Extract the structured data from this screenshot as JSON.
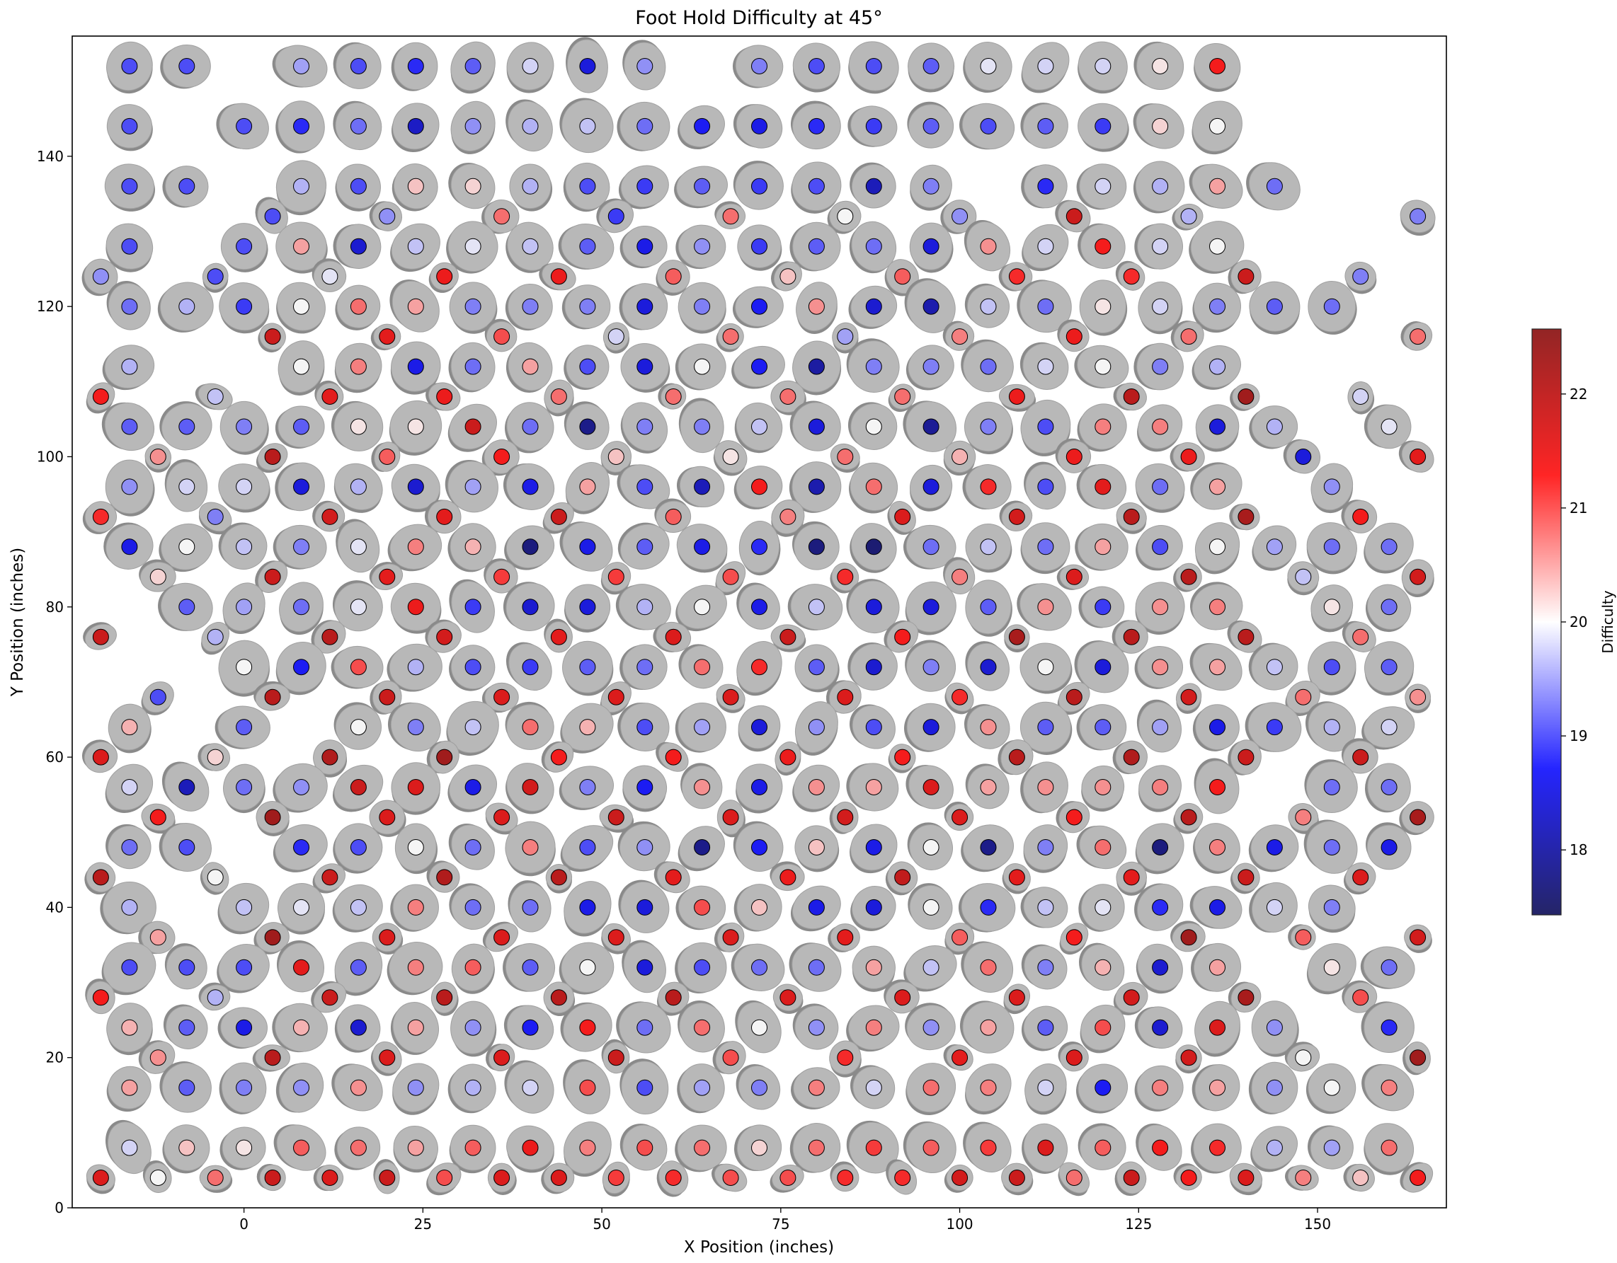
{
  "chart_data": {
    "type": "scatter",
    "title": "Foot Hold Difficulty at 45°",
    "xlabel": "X Position (inches)",
    "ylabel": "Y Position (inches)",
    "xlim": [
      -24,
      168
    ],
    "ylim": [
      0,
      156
    ],
    "xticks": [
      0,
      25,
      50,
      75,
      100,
      125,
      150
    ],
    "yticks": [
      0,
      20,
      40,
      60,
      80,
      100,
      120,
      140
    ],
    "grid": false,
    "colorbar": {
      "label": "Difficulty",
      "colormap": "seismic",
      "vmin": 17.43,
      "vmax": 22.57,
      "ticks": [
        18,
        19,
        20,
        21,
        22
      ]
    },
    "marker_edge_color": "#000000",
    "hold_color": "#b8b8b8",
    "rows": [
      {
        "y": 152,
        "x_start": -16,
        "x_step": 8,
        "difficulty": [
          19.0,
          19.0,
          null,
          19.5,
          19.0,
          18.8,
          19.1,
          19.8,
          18.5,
          19.4,
          null,
          19.3,
          19.0,
          19.0,
          19.1,
          19.9,
          19.8,
          19.8,
          20.1,
          21.3,
          null,
          null,
          null
        ]
      },
      {
        "y": 144,
        "x_start": -16,
        "x_step": 8,
        "difficulty": [
          19.0,
          null,
          19.0,
          18.8,
          19.2,
          18.3,
          19.4,
          19.6,
          19.7,
          19.2,
          18.7,
          18.6,
          18.8,
          18.9,
          19.1,
          19.0,
          19.1,
          18.9,
          20.2,
          20.0,
          null,
          null,
          null
        ]
      },
      {
        "y": 136,
        "x_start": -16,
        "x_step": 8,
        "difficulty": [
          19.0,
          19.0,
          null,
          19.6,
          19.0,
          20.3,
          20.2,
          19.6,
          19.0,
          18.9,
          19.1,
          18.9,
          19.0,
          18.2,
          19.3,
          null,
          18.8,
          19.8,
          19.6,
          20.5,
          19.2,
          null,
          null
        ]
      },
      {
        "y": 132,
        "x_start": -12,
        "x_step": 16,
        "difficulty": [
          null,
          19.0,
          19.4,
          20.8,
          18.9,
          20.8,
          20.0,
          19.4,
          21.8,
          19.6,
          null,
          19.3
        ]
      },
      {
        "y": 128,
        "x_start": -16,
        "x_step": 8,
        "difficulty": [
          19.0,
          null,
          19.0,
          20.5,
          18.4,
          19.7,
          19.9,
          19.7,
          19.1,
          18.6,
          19.4,
          18.9,
          19.1,
          19.2,
          18.5,
          20.6,
          19.8,
          21.3,
          19.8,
          20.0,
          null,
          null,
          null
        ]
      },
      {
        "y": 124,
        "x_start": -20,
        "x_step": 16,
        "difficulty": [
          19.4,
          19.0,
          19.9,
          21.4,
          21.4,
          20.9,
          20.3,
          20.9,
          21.2,
          21.2,
          21.8,
          19.3
        ]
      },
      {
        "y": 120,
        "x_start": -16,
        "x_step": 8,
        "difficulty": [
          19.2,
          19.6,
          18.9,
          20.0,
          20.8,
          20.5,
          19.3,
          19.3,
          19.3,
          18.5,
          19.3,
          18.7,
          20.6,
          18.4,
          18.1,
          19.7,
          19.2,
          20.1,
          19.8,
          19.3,
          19.1,
          19.2,
          null
        ]
      },
      {
        "y": 116,
        "x_start": -12,
        "x_step": 16,
        "difficulty": [
          null,
          21.8,
          21.5,
          21.0,
          19.8,
          20.8,
          19.5,
          20.7,
          21.4,
          20.8,
          null,
          20.8
        ]
      },
      {
        "y": 112,
        "x_start": -16,
        "x_step": 8,
        "difficulty": [
          19.6,
          null,
          null,
          20.0,
          20.7,
          18.6,
          19.2,
          20.5,
          19.0,
          18.5,
          20.0,
          18.7,
          18.0,
          19.3,
          19.3,
          19.2,
          19.8,
          20.0,
          19.3,
          19.6,
          null,
          null,
          null
        ]
      },
      {
        "y": 108,
        "x_start": -20,
        "x_step": 16,
        "difficulty": [
          21.3,
          19.7,
          21.5,
          21.4,
          20.8,
          20.8,
          20.8,
          20.8,
          21.4,
          22.0,
          22.3,
          19.8
        ]
      },
      {
        "y": 104,
        "x_start": -16,
        "x_step": 8,
        "difficulty": [
          19.1,
          19.1,
          19.3,
          19.1,
          20.1,
          20.1,
          21.8,
          19.2,
          17.8,
          19.3,
          19.3,
          19.7,
          18.5,
          20.0,
          17.9,
          19.3,
          19.0,
          20.7,
          20.7,
          18.5,
          19.6,
          null,
          19.9
        ]
      },
      {
        "y": 100,
        "x_start": -12,
        "x_step": 16,
        "difficulty": [
          20.6,
          22.0,
          20.9,
          21.3,
          20.3,
          20.1,
          20.8,
          20.4,
          21.4,
          21.4,
          18.5,
          21.5
        ]
      },
      {
        "y": 96,
        "x_start": -16,
        "x_step": 8,
        "difficulty": [
          19.4,
          19.8,
          19.8,
          18.5,
          19.6,
          18.4,
          19.5,
          18.6,
          20.5,
          19.0,
          18.2,
          21.3,
          18.1,
          20.8,
          18.5,
          21.2,
          19.0,
          21.5,
          19.2,
          20.5,
          null,
          19.4,
          null
        ]
      },
      {
        "y": 92,
        "x_start": -20,
        "x_step": 16,
        "difficulty": [
          21.2,
          19.3,
          21.7,
          21.5,
          21.8,
          20.9,
          20.7,
          21.6,
          21.7,
          22.0,
          22.2,
          21.3
        ]
      },
      {
        "y": 88,
        "x_start": -16,
        "x_step": 8,
        "difficulty": [
          18.6,
          20.0,
          19.7,
          19.3,
          19.9,
          20.7,
          20.4,
          17.7,
          18.6,
          19.1,
          18.6,
          18.8,
          17.7,
          17.6,
          19.2,
          19.7,
          19.2,
          20.5,
          19.0,
          20.0,
          19.5,
          19.2,
          19.2
        ]
      },
      {
        "y": 84,
        "x_start": -12,
        "x_step": 16,
        "difficulty": [
          20.2,
          21.8,
          21.5,
          21.1,
          21.1,
          21.0,
          21.2,
          20.7,
          21.6,
          22.0,
          19.7,
          21.7
        ]
      },
      {
        "y": 80,
        "x_start": -16,
        "x_step": 8,
        "difficulty": [
          null,
          19.1,
          19.5,
          19.2,
          19.9,
          21.4,
          18.9,
          18.4,
          18.5,
          19.6,
          20.0,
          18.6,
          19.7,
          18.5,
          18.5,
          19.1,
          20.6,
          18.9,
          20.6,
          20.7,
          null,
          20.1,
          19.2
        ]
      },
      {
        "y": 76,
        "x_start": -20,
        "x_step": 16,
        "difficulty": [
          21.8,
          19.6,
          22.0,
          21.7,
          21.5,
          21.6,
          21.8,
          21.3,
          22.2,
          22.0,
          22.0,
          20.8
        ]
      },
      {
        "y": 72,
        "x_start": -16,
        "x_step": 8,
        "difficulty": [
          null,
          null,
          20.0,
          18.7,
          21.0,
          19.6,
          19.0,
          18.9,
          19.1,
          19.2,
          20.8,
          21.2,
          19.1,
          18.4,
          19.3,
          18.4,
          20.0,
          18.5,
          20.6,
          20.5,
          19.7,
          19.0,
          19.1
        ]
      },
      {
        "y": 68,
        "x_start": -12,
        "x_step": 16,
        "difficulty": [
          19.0,
          22.0,
          21.8,
          21.6,
          21.6,
          21.6,
          21.6,
          21.2,
          22.0,
          21.7,
          20.8,
          20.6
        ]
      },
      {
        "y": 64,
        "x_start": -16,
        "x_step": 8,
        "difficulty": [
          20.4,
          null,
          19.1,
          null,
          20.0,
          19.3,
          19.7,
          20.8,
          20.4,
          19.0,
          19.5,
          18.5,
          19.4,
          19.0,
          18.5,
          20.6,
          19.1,
          19.1,
          19.5,
          18.6,
          18.9,
          19.6,
          19.8
        ]
      },
      {
        "y": 60,
        "x_start": -20,
        "x_step": 16,
        "difficulty": [
          21.6,
          20.2,
          22.1,
          22.3,
          21.3,
          21.3,
          21.4,
          21.3,
          22.0,
          22.1,
          21.8,
          21.8
        ]
      },
      {
        "y": 56,
        "x_start": -16,
        "x_step": 8,
        "difficulty": [
          19.8,
          18.2,
          19.2,
          19.4,
          21.8,
          21.6,
          18.6,
          21.7,
          19.3,
          18.7,
          20.6,
          18.6,
          20.6,
          20.5,
          21.6,
          20.5,
          20.6,
          20.6,
          20.7,
          21.3,
          null,
          19.2,
          19.2
        ]
      },
      {
        "y": 52,
        "x_start": -12,
        "x_step": 16,
        "difficulty": [
          21.3,
          22.3,
          21.6,
          21.6,
          21.8,
          21.6,
          21.7,
          21.6,
          21.3,
          22.0,
          20.7,
          22.2
        ]
      },
      {
        "y": 48,
        "x_start": -16,
        "x_step": 8,
        "difficulty": [
          19.2,
          19.0,
          null,
          18.8,
          19.0,
          20.0,
          19.2,
          20.7,
          19.0,
          19.4,
          17.8,
          18.7,
          20.3,
          18.6,
          20.0,
          17.8,
          19.3,
          20.8,
          17.7,
          20.7,
          18.6,
          19.2,
          18.6
        ]
      },
      {
        "y": 44,
        "x_start": -20,
        "x_step": 16,
        "difficulty": [
          22.0,
          20.0,
          21.8,
          22.1,
          22.0,
          21.5,
          21.4,
          21.9,
          21.5,
          21.5,
          21.8,
          21.6
        ]
      },
      {
        "y": 40,
        "x_start": -16,
        "x_step": 8,
        "difficulty": [
          19.6,
          null,
          19.7,
          19.9,
          19.7,
          20.7,
          19.2,
          19.2,
          18.6,
          18.5,
          21.0,
          20.3,
          18.6,
          18.5,
          20.0,
          18.8,
          19.7,
          19.9,
          18.8,
          18.6,
          19.8,
          19.3,
          null
        ]
      },
      {
        "y": 36,
        "x_start": -12,
        "x_step": 16,
        "difficulty": [
          20.5,
          22.3,
          21.6,
          21.6,
          21.6,
          21.6,
          21.5,
          20.9,
          21.3,
          22.3,
          20.9,
          21.7
        ]
      },
      {
        "y": 32,
        "x_start": -16,
        "x_step": 8,
        "difficulty": [
          19.0,
          19.0,
          19.0,
          21.5,
          19.1,
          20.7,
          20.9,
          19.1,
          20.0,
          18.5,
          19.0,
          19.2,
          19.2,
          20.5,
          19.7,
          20.8,
          19.3,
          20.4,
          18.4,
          20.5,
          null,
          20.1,
          19.2
        ]
      },
      {
        "y": 28,
        "x_start": -20,
        "x_step": 16,
        "difficulty": [
          21.3,
          19.6,
          21.8,
          22.0,
          22.0,
          22.0,
          21.6,
          21.6,
          21.6,
          21.7,
          22.2,
          21.0
        ]
      },
      {
        "y": 24,
        "x_start": -16,
        "x_step": 8,
        "difficulty": [
          20.4,
          19.1,
          18.6,
          20.4,
          18.4,
          20.5,
          19.4,
          18.7,
          21.3,
          19.2,
          20.8,
          20.0,
          19.4,
          20.7,
          19.4,
          20.5,
          19.1,
          21.0,
          18.4,
          21.6,
          19.4,
          null,
          18.8
        ]
      },
      {
        "y": 20,
        "x_start": -12,
        "x_step": 16,
        "difficulty": [
          20.6,
          22.0,
          21.6,
          21.6,
          21.8,
          21.0,
          21.2,
          21.5,
          21.6,
          21.7,
          20.0,
          22.3
        ]
      },
      {
        "y": 16,
        "x_start": -16,
        "x_step": 8,
        "difficulty": [
          20.5,
          19.1,
          19.3,
          19.4,
          20.6,
          19.4,
          19.6,
          19.8,
          21.0,
          19.0,
          19.5,
          19.3,
          20.7,
          19.8,
          20.8,
          20.7,
          19.8,
          18.7,
          20.7,
          20.5,
          19.4,
          20.0,
          20.7
        ]
      },
      {
        "y": 8,
        "x_start": -16,
        "x_step": 8,
        "difficulty": [
          19.8,
          20.3,
          20.1,
          20.9,
          20.8,
          20.5,
          20.9,
          21.4,
          20.7,
          21.0,
          20.8,
          20.2,
          20.8,
          21.1,
          20.9,
          21.1,
          21.6,
          20.9,
          21.3,
          21.2,
          19.6,
          19.5,
          20.8
        ]
      },
      {
        "y": 4,
        "x_start": -20,
        "x_step": 8,
        "difficulty": [
          21.6,
          20.0,
          20.8,
          21.8,
          21.6,
          21.8,
          21.0,
          21.6,
          21.6,
          21.1,
          21.2,
          21.0,
          21.0,
          21.2,
          21.2,
          21.7,
          21.8,
          20.8,
          21.8,
          21.3,
          21.6,
          20.7,
          20.3,
          21.3
        ]
      }
    ]
  }
}
